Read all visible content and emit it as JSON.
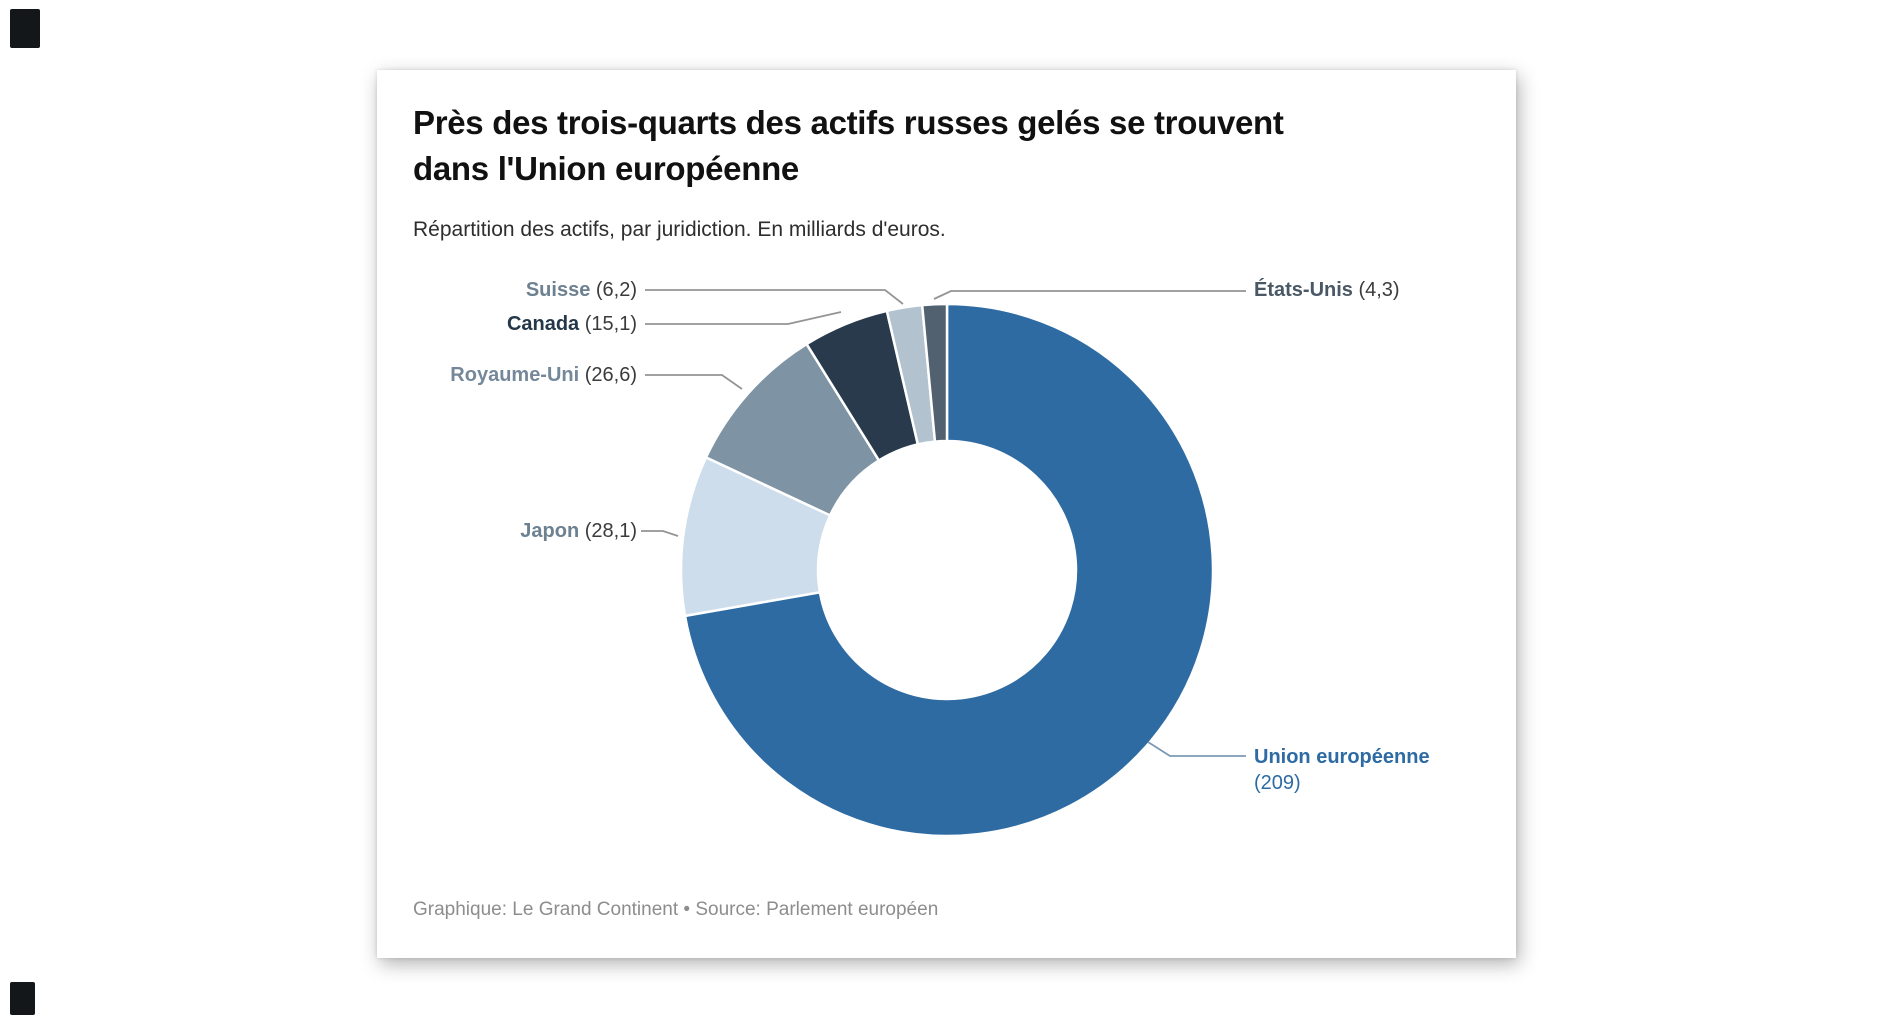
{
  "title": {
    "line1": "Près des trois-quarts des actifs russes gelés se trouvent",
    "line2": "dans l'Union européenne"
  },
  "subtitle": "Répartition des actifs, par juridiction. En milliards d'euros.",
  "footer": "Graphique: Le Grand Continent • Source: Parlement européen",
  "colors": {
    "accent_blue": "#2e6ba3",
    "leader_gray": "#949494",
    "leader_blue": "#7b99b4",
    "card_background": "#ffffff",
    "title_text": "#111111",
    "footer_text": "#8d8d8d"
  },
  "chart_data": {
    "type": "pie",
    "variant": "donut",
    "title": "Près des trois-quarts des actifs russes gelés se trouvent dans l'Union européenne",
    "subtitle": "Répartition des actifs, par juridiction. En milliards d'euros.",
    "unit": "milliards d'euros",
    "start_angle_deg": 0,
    "direction": "clockwise",
    "legend_position": "none",
    "label_style": "callouts-with-leader-lines",
    "slices": [
      {
        "id": "union-europeenne",
        "label": "Union européenne",
        "value": 209,
        "value_display": "(209)",
        "color": "#2e6ba3",
        "label_color": "#2e6ba3"
      },
      {
        "id": "japon",
        "label": "Japon",
        "value": 28.1,
        "value_display": "(28,1)",
        "color": "#cdddec",
        "label_color": "#6d8191"
      },
      {
        "id": "royaume-uni",
        "label": "Royaume-Uni",
        "value": 26.6,
        "value_display": "(26,6)",
        "color": "#7e93a4",
        "label_color": "#74889a"
      },
      {
        "id": "canada",
        "label": "Canada",
        "value": 15.1,
        "value_display": "(15,1)",
        "color": "#283a4b",
        "label_color": "#253849"
      },
      {
        "id": "suisse",
        "label": "Suisse",
        "value": 6.2,
        "value_display": "(6,2)",
        "color": "#b2c2ce",
        "label_color": "#6d8191"
      },
      {
        "id": "etats-unis",
        "label": "États-Unis",
        "value": 4.3,
        "value_display": "(4,3)",
        "color": "#52616f",
        "label_color": "#4a5866"
      }
    ]
  }
}
